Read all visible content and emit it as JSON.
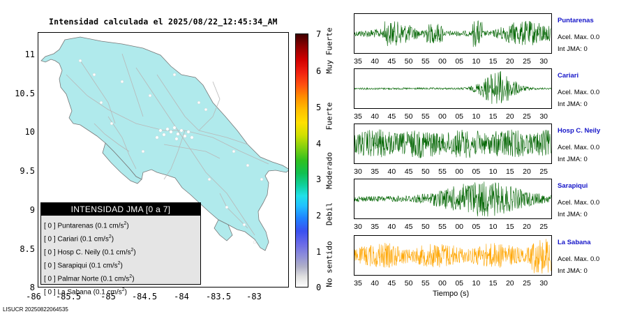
{
  "map": {
    "title": "Intensidad calculada el 2025/08/22_12:45:34_AM",
    "y_ticks": [
      "11",
      "10.5",
      "10",
      "9.5",
      "9",
      "8.5",
      "8"
    ],
    "x_ticks": [
      "-86",
      "-85.5",
      "-85",
      "-84.5",
      "-84",
      "-83.5",
      "-83"
    ],
    "land_color": "#b0eaec",
    "legend": {
      "title": "INTENSIDAD JMA [0 a 7]",
      "items": [
        {
          "prefix": "[ 0 ]",
          "label": "Puntarenas (0.1 cm/s",
          "exp": "2",
          "suffix": ")"
        },
        {
          "prefix": "[ 0 ]",
          "label": "Cariari (0.1 cm/s",
          "exp": "2",
          "suffix": ")"
        },
        {
          "prefix": "[ 0 ]",
          "label": "Hosp C. Neily (0.1 cm/s",
          "exp": "2",
          "suffix": ")"
        },
        {
          "prefix": "[ 0 ]",
          "label": "Sarapiqui (0.1 cm/s",
          "exp": "2",
          "suffix": ")"
        },
        {
          "prefix": "[ 0 ]",
          "label": "Palmar Norte (0.1 cm/s",
          "exp": "2",
          "suffix": ")"
        },
        {
          "prefix": "[ 0 ]",
          "label": "La Sabana (0.1 cm/s",
          "exp": "2",
          "suffix": ")"
        }
      ]
    }
  },
  "colorbar": {
    "ticks": [
      "7",
      "6",
      "5",
      "4",
      "3",
      "2",
      "1",
      "0"
    ],
    "labels": [
      "Muy Fuerte",
      "Fuerte",
      "Moderado",
      "Debil",
      "No sentido"
    ]
  },
  "stations": [
    {
      "name": "Puntarenas",
      "accel": "Acel. Max. 0.0",
      "int": "Int JMA: 0",
      "color": "#006400",
      "ticks": [
        "35",
        "40",
        "45",
        "50",
        "55",
        "00",
        "05",
        "10",
        "15",
        "20",
        "25",
        "30"
      ]
    },
    {
      "name": "Cariari",
      "accel": "Acel. Max. 0.0",
      "int": "Int JMA: 0",
      "color": "#006400",
      "ticks": [
        "35",
        "40",
        "45",
        "50",
        "55",
        "00",
        "05",
        "10",
        "15",
        "20",
        "25",
        "30"
      ]
    },
    {
      "name": "Hosp C. Neily",
      "accel": "Acel. Max. 0.0",
      "int": "Int JMA: 0",
      "color": "#006400",
      "ticks": [
        "30",
        "35",
        "40",
        "45",
        "50",
        "55",
        "00",
        "05",
        "10",
        "15",
        "20",
        "25"
      ]
    },
    {
      "name": "Sarapiqui",
      "accel": "Acel. Max. 0.0",
      "int": "Int JMA: 0",
      "color": "#006400",
      "ticks": [
        "30",
        "35",
        "40",
        "45",
        "50",
        "55",
        "00",
        "05",
        "10",
        "15",
        "20",
        "25"
      ]
    },
    {
      "name": "La Sabana",
      "accel": "Acel. Max. 0.0",
      "int": "Int JMA: 0",
      "color": "#ffa500",
      "ticks": [
        "35",
        "40",
        "45",
        "50",
        "55",
        "00",
        "05",
        "10",
        "15",
        "20",
        "25",
        "30"
      ]
    }
  ],
  "time_label": "Tiempo (s)",
  "footer_id": "LISUCR 20250822064535"
}
